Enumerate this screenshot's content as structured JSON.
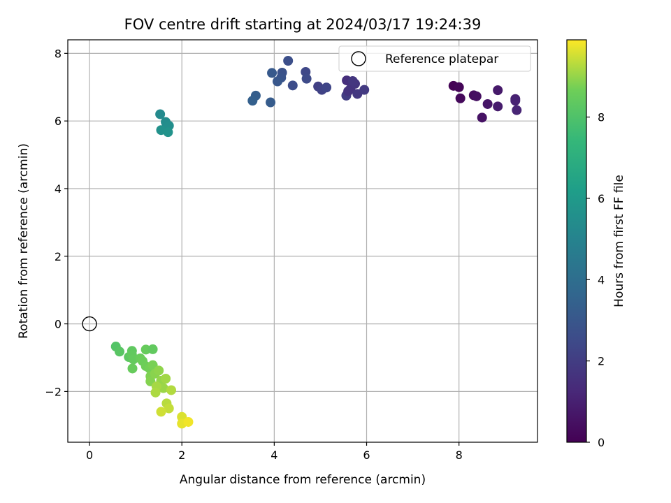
{
  "chart_data": {
    "type": "scatter",
    "title": "FOV centre drift starting at 2024/03/17 19:24:39",
    "xlabel": "Angular distance from reference (arcmin)",
    "ylabel": "Rotation from reference (arcmin)",
    "xlim": [
      -0.47,
      9.7
    ],
    "ylim": [
      -3.5,
      8.4
    ],
    "xticks": [
      0,
      2,
      4,
      6,
      8
    ],
    "yticks": [
      -2,
      0,
      2,
      4,
      6,
      8
    ],
    "grid": true,
    "legend": {
      "placement": "top-right",
      "entries": [
        "Reference platepar"
      ]
    },
    "reference_point": {
      "x": 0,
      "y": 0
    },
    "colorbar": {
      "label": "Hours from first FF file",
      "colormap": "viridis",
      "range": [
        0,
        9.9
      ],
      "ticks": [
        0,
        2,
        4,
        6,
        8
      ]
    },
    "points": [
      {
        "x": 7.88,
        "y": 7.04,
        "c": 0.05
      },
      {
        "x": 8.0,
        "y": 7.0,
        "c": 0.15
      },
      {
        "x": 8.03,
        "y": 6.67,
        "c": 0.25
      },
      {
        "x": 8.32,
        "y": 6.76,
        "c": 0.35
      },
      {
        "x": 8.38,
        "y": 6.73,
        "c": 0.45
      },
      {
        "x": 8.5,
        "y": 6.1,
        "c": 0.55
      },
      {
        "x": 8.62,
        "y": 6.5,
        "c": 0.65
      },
      {
        "x": 8.84,
        "y": 6.91,
        "c": 0.75
      },
      {
        "x": 8.84,
        "y": 6.43,
        "c": 0.85
      },
      {
        "x": 9.22,
        "y": 6.65,
        "c": 0.95
      },
      {
        "x": 9.22,
        "y": 6.6,
        "c": 1.05
      },
      {
        "x": 9.25,
        "y": 6.32,
        "c": 1.15
      },
      {
        "x": 5.57,
        "y": 7.2,
        "c": 1.5
      },
      {
        "x": 5.65,
        "y": 6.95,
        "c": 1.6
      },
      {
        "x": 5.75,
        "y": 7.1,
        "c": 1.7
      },
      {
        "x": 5.8,
        "y": 6.8,
        "c": 1.8
      },
      {
        "x": 5.95,
        "y": 6.92,
        "c": 1.9
      },
      {
        "x": 5.56,
        "y": 6.75,
        "c": 2.0
      },
      {
        "x": 5.6,
        "y": 6.88,
        "c": 1.65
      },
      {
        "x": 5.7,
        "y": 7.18,
        "c": 1.75
      },
      {
        "x": 4.95,
        "y": 7.02,
        "c": 2.1
      },
      {
        "x": 5.03,
        "y": 6.92,
        "c": 2.2
      },
      {
        "x": 5.13,
        "y": 6.99,
        "c": 2.3
      },
      {
        "x": 4.68,
        "y": 7.45,
        "c": 2.4
      },
      {
        "x": 4.7,
        "y": 7.25,
        "c": 2.5
      },
      {
        "x": 4.4,
        "y": 7.05,
        "c": 2.6
      },
      {
        "x": 4.3,
        "y": 7.78,
        "c": 2.7
      },
      {
        "x": 4.17,
        "y": 7.43,
        "c": 2.8
      },
      {
        "x": 4.15,
        "y": 7.28,
        "c": 2.9
      },
      {
        "x": 4.07,
        "y": 7.17,
        "c": 3.0
      },
      {
        "x": 3.95,
        "y": 7.42,
        "c": 3.1
      },
      {
        "x": 3.92,
        "y": 6.55,
        "c": 3.2
      },
      {
        "x": 3.6,
        "y": 6.75,
        "c": 3.3
      },
      {
        "x": 3.53,
        "y": 6.6,
        "c": 3.4
      },
      {
        "x": 1.53,
        "y": 6.2,
        "c": 5.3
      },
      {
        "x": 1.65,
        "y": 5.97,
        "c": 5.4
      },
      {
        "x": 1.72,
        "y": 5.86,
        "c": 5.5
      },
      {
        "x": 1.55,
        "y": 5.73,
        "c": 5.6
      },
      {
        "x": 1.7,
        "y": 5.67,
        "c": 5.7
      },
      {
        "x": 0.57,
        "y": -0.67,
        "c": 8.1
      },
      {
        "x": 0.65,
        "y": -0.82,
        "c": 8.2
      },
      {
        "x": 0.85,
        "y": -0.98,
        "c": 8.3
      },
      {
        "x": 0.92,
        "y": -0.8,
        "c": 8.35
      },
      {
        "x": 0.92,
        "y": -0.92,
        "c": 8.4
      },
      {
        "x": 0.95,
        "y": -1.05,
        "c": 8.45
      },
      {
        "x": 0.93,
        "y": -1.32,
        "c": 8.5
      },
      {
        "x": 1.1,
        "y": -1.02,
        "c": 8.55
      },
      {
        "x": 1.15,
        "y": -1.1,
        "c": 8.6
      },
      {
        "x": 1.22,
        "y": -0.76,
        "c": 8.5
      },
      {
        "x": 1.37,
        "y": -0.75,
        "c": 8.4
      },
      {
        "x": 1.22,
        "y": -1.25,
        "c": 8.65
      },
      {
        "x": 1.3,
        "y": -1.32,
        "c": 8.7
      },
      {
        "x": 1.37,
        "y": -1.22,
        "c": 8.75
      },
      {
        "x": 1.32,
        "y": -1.55,
        "c": 8.8
      },
      {
        "x": 1.32,
        "y": -1.7,
        "c": 8.85
      },
      {
        "x": 1.42,
        "y": -1.47,
        "c": 8.9
      },
      {
        "x": 1.5,
        "y": -1.38,
        "c": 8.95
      },
      {
        "x": 1.55,
        "y": -1.68,
        "c": 9.0
      },
      {
        "x": 1.6,
        "y": -1.9,
        "c": 9.05
      },
      {
        "x": 1.65,
        "y": -1.62,
        "c": 9.1
      },
      {
        "x": 1.45,
        "y": -1.85,
        "c": 9.15
      },
      {
        "x": 1.43,
        "y": -2.03,
        "c": 9.2
      },
      {
        "x": 1.77,
        "y": -1.96,
        "c": 9.25
      },
      {
        "x": 1.67,
        "y": -2.35,
        "c": 9.3
      },
      {
        "x": 1.72,
        "y": -2.5,
        "c": 9.4
      },
      {
        "x": 1.55,
        "y": -2.6,
        "c": 9.5
      },
      {
        "x": 2.0,
        "y": -2.75,
        "c": 9.6
      },
      {
        "x": 2.0,
        "y": -2.95,
        "c": 9.7
      },
      {
        "x": 2.14,
        "y": -2.9,
        "c": 9.8
      }
    ]
  }
}
